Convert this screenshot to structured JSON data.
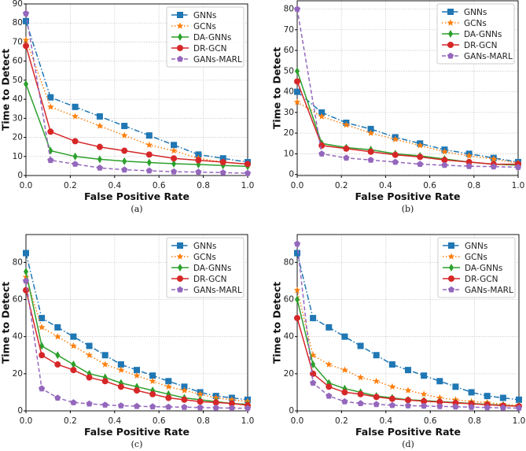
{
  "chart_data": [
    {
      "type": "line",
      "caption": "(a)",
      "xlabel": "False Positive Rate",
      "ylabel": "Time to Detect",
      "xlim": [
        0,
        1
      ],
      "ylim": [
        0,
        90
      ],
      "xticks": [
        "0.0",
        "0.2",
        "0.4",
        "0.6",
        "0.8",
        "1.0"
      ],
      "yticks": [
        "0",
        "10",
        "20",
        "30",
        "40",
        "50",
        "60",
        "70",
        "80",
        "90"
      ],
      "grid": true,
      "legend": "top-right",
      "x": [
        0,
        0.111,
        0.222,
        0.333,
        0.444,
        0.556,
        0.667,
        0.778,
        0.889,
        1.0
      ],
      "series": [
        {
          "name": "GNNs",
          "values": [
            81,
            41,
            36,
            31,
            26,
            21,
            16,
            11,
            9,
            7
          ]
        },
        {
          "name": "GCNs",
          "values": [
            71,
            36,
            31,
            26,
            21,
            16,
            13,
            9,
            7,
            6
          ]
        },
        {
          "name": "DA-GNNs",
          "values": [
            48,
            13,
            10,
            8.5,
            7.5,
            6.8,
            6.2,
            5.8,
            5.3,
            4.8
          ]
        },
        {
          "name": "DR-GCN",
          "values": [
            68,
            23,
            18,
            15,
            13,
            11,
            9,
            8,
            7,
            6
          ]
        },
        {
          "name": "GANs-MARL",
          "values": [
            85,
            8,
            6,
            4,
            3,
            2.5,
            2,
            1.8,
            1.5,
            1.2
          ]
        }
      ]
    },
    {
      "type": "line",
      "caption": "(b)",
      "xlabel": "False Positive Rate",
      "ylabel": "Time to Detect",
      "xlim": [
        0,
        1
      ],
      "ylim": [
        -0.5,
        84
      ],
      "xticks": [
        "0.0",
        "0.2",
        "0.4",
        "0.6",
        "0.8",
        "1.0"
      ],
      "yticks": [
        "0",
        "10",
        "20",
        "30",
        "40",
        "50",
        "60",
        "70",
        "80"
      ],
      "grid": true,
      "legend": "top-right",
      "x": [
        0,
        0.111,
        0.222,
        0.333,
        0.444,
        0.556,
        0.667,
        0.778,
        0.889,
        1.0
      ],
      "series": [
        {
          "name": "GNNs",
          "values": [
            40,
            30,
            25,
            22,
            18,
            15,
            12,
            10,
            8,
            6
          ]
        },
        {
          "name": "GCNs",
          "values": [
            35,
            28,
            24,
            20,
            17,
            14,
            11,
            9,
            7.5,
            5.5
          ]
        },
        {
          "name": "DA-GNNs",
          "values": [
            50,
            15,
            13,
            12,
            10,
            9,
            7.5,
            6,
            5,
            4.5
          ]
        },
        {
          "name": "DR-GCN",
          "values": [
            45,
            14,
            12.5,
            11,
            9.5,
            8.5,
            7,
            6,
            5,
            5
          ]
        },
        {
          "name": "GANs-MARL",
          "values": [
            80,
            10,
            8,
            7,
            6,
            5,
            4.5,
            4,
            3.8,
            3.5
          ]
        }
      ]
    },
    {
      "type": "line",
      "caption": "(c)",
      "xlabel": "False Positive Rate",
      "ylabel": "Time to Detect",
      "xlim": [
        0,
        1
      ],
      "ylim": [
        0,
        95
      ],
      "xticks": [
        "0.0",
        "0.2",
        "0.4",
        "0.6",
        "0.8",
        "1.0"
      ],
      "yticks": [
        "0",
        "20",
        "40",
        "60",
        "80"
      ],
      "grid": true,
      "legend": "top-right",
      "x": [
        0,
        0.0714,
        0.1429,
        0.2143,
        0.2857,
        0.3571,
        0.4286,
        0.5,
        0.5714,
        0.6429,
        0.7143,
        0.7857,
        0.8571,
        0.9286,
        1.0
      ],
      "series": [
        {
          "name": "GNNs",
          "values": [
            85,
            50,
            45,
            40,
            35,
            30,
            25,
            22,
            19,
            16,
            13,
            10,
            8,
            7,
            6
          ]
        },
        {
          "name": "GCNs",
          "values": [
            72,
            45,
            40,
            35,
            30,
            25,
            22,
            19,
            16,
            13,
            11,
            9,
            7,
            6,
            5
          ]
        },
        {
          "name": "DA-GNNs",
          "values": [
            75,
            35,
            30,
            25,
            20,
            18,
            15,
            13,
            11,
            9,
            7,
            6,
            5,
            4,
            3.5
          ]
        },
        {
          "name": "DR-GCN",
          "values": [
            65,
            30,
            25,
            22,
            18,
            16,
            13,
            11,
            9,
            7,
            6,
            5,
            4.5,
            4,
            3
          ]
        },
        {
          "name": "GANs-MARL",
          "values": [
            70,
            12,
            7,
            4.5,
            3.8,
            3.2,
            2.8,
            2.5,
            2.3,
            2.1,
            2,
            1.8,
            1.6,
            1.5,
            1.4
          ]
        }
      ]
    },
    {
      "type": "line",
      "caption": "(d)",
      "xlabel": "False Positive Rate",
      "ylabel": "Time to Detect",
      "xlim": [
        0,
        1
      ],
      "ylim": [
        0,
        95
      ],
      "xticks": [
        "0.0",
        "0.2",
        "0.4",
        "0.6",
        "0.8",
        "1.0"
      ],
      "yticks": [
        "0",
        "20",
        "40",
        "60",
        "80"
      ],
      "grid": true,
      "legend": "top-right",
      "x": [
        0,
        0.0714,
        0.1429,
        0.2143,
        0.2857,
        0.3571,
        0.4286,
        0.5,
        0.5714,
        0.6429,
        0.7143,
        0.7857,
        0.8571,
        0.9286,
        1.0
      ],
      "series": [
        {
          "name": "GNNs",
          "values": [
            85,
            50,
            45,
            40,
            35,
            30,
            25,
            22,
            19,
            16,
            13,
            10,
            8,
            7,
            6
          ]
        },
        {
          "name": "GCNs",
          "values": [
            65,
            30,
            25,
            22,
            18,
            16,
            13,
            11,
            9,
            7,
            6,
            5,
            4.5,
            3.5,
            3
          ]
        },
        {
          "name": "DA-GNNs",
          "values": [
            60,
            25,
            15,
            12,
            10,
            8,
            7,
            6,
            5.5,
            5,
            4.5,
            4,
            3.5,
            3,
            2.5
          ]
        },
        {
          "name": "DR-GCN",
          "values": [
            50,
            20,
            13,
            10,
            9,
            7.5,
            6.5,
            5.8,
            5.2,
            4.8,
            4.3,
            3.8,
            3.3,
            2.8,
            2.5
          ]
        },
        {
          "name": "GANs-MARL",
          "values": [
            90,
            15,
            8,
            5,
            4,
            3.5,
            3,
            2.8,
            2.6,
            2.4,
            2.2,
            2,
            1.8,
            1.6,
            1.5
          ]
        }
      ]
    }
  ],
  "styles": {
    "GNNs": {
      "color": "#1f77b4",
      "marker": "square",
      "dash": "dashdot"
    },
    "GCNs": {
      "color": "#ff7f0e",
      "marker": "star",
      "dash": "dotted"
    },
    "DA-GNNs": {
      "color": "#2ca02c",
      "marker": "thin-diamond",
      "dash": "solid"
    },
    "DR-GCN": {
      "color": "#d62728",
      "marker": "circle",
      "dash": "solid"
    },
    "GANs-MARL": {
      "color": "#9467bd",
      "marker": "pentagon",
      "dash": "dashed"
    }
  }
}
